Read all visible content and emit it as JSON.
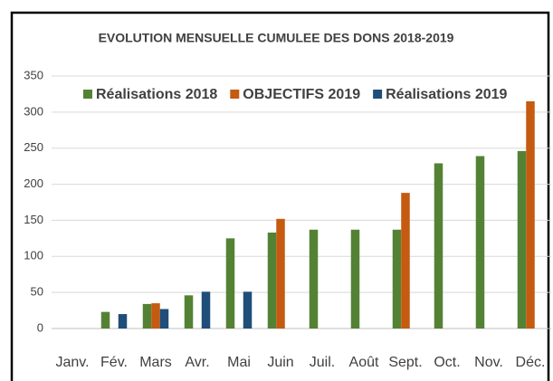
{
  "chart_data": {
    "type": "bar",
    "title": "EVOLUTION MENSUELLE CUMULEE DES DONS 2018-2019",
    "categories": [
      "Janv.",
      "Fév.",
      "Mars",
      "Avr.",
      "Mai",
      "Juin",
      "Juil.",
      "Août",
      "Sept.",
      "Oct.",
      "Nov.",
      "Déc."
    ],
    "series": [
      {
        "name": "Réalisations 2018",
        "color": "#548235",
        "values": [
          null,
          23,
          34,
          46,
          125,
          133,
          137,
          137,
          137,
          229,
          239,
          246
        ]
      },
      {
        "name": "OBJECTIFS 2019",
        "color": "#c55a11",
        "values": [
          null,
          null,
          35,
          null,
          null,
          152,
          null,
          null,
          188,
          null,
          null,
          315
        ]
      },
      {
        "name": "Réalisations 2019",
        "color": "#1f4e79",
        "values": [
          null,
          20,
          27,
          51,
          51,
          null,
          null,
          null,
          null,
          null,
          null,
          null
        ]
      }
    ],
    "ylim": [
      0,
      350
    ],
    "yticks": [
      0,
      50,
      100,
      150,
      200,
      250,
      300,
      350
    ],
    "grid": true,
    "legend": "top"
  }
}
